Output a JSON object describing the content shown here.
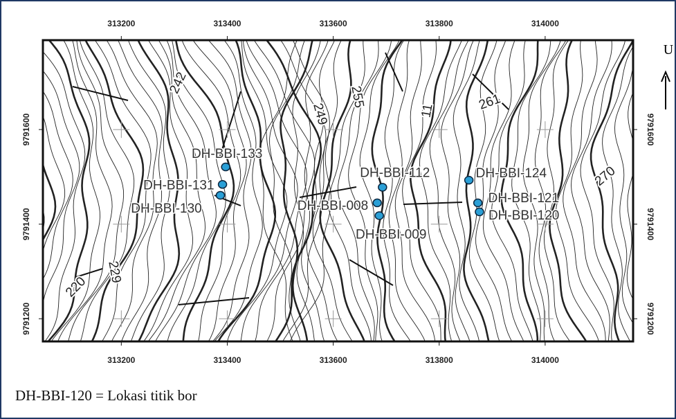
{
  "map": {
    "xticks": [
      313200,
      313400,
      313600,
      313800,
      314000
    ],
    "yticks": [
      9791200,
      9791400,
      9791600
    ],
    "xlim": [
      313052,
      314166
    ],
    "ylim": [
      9791152,
      9791789
    ],
    "north_label": "U",
    "contour_labels": [
      "242",
      "249",
      "255",
      "11",
      "261",
      "270",
      "229",
      "220"
    ],
    "point_color": "#2a9fd6",
    "drill_holes": [
      {
        "name": "DH-BBI-133",
        "easting": 313397,
        "northing": 9791521
      },
      {
        "name": "DH-BBI-131",
        "easting": 313391,
        "northing": 9791484
      },
      {
        "name": "DH-BBI-130",
        "easting": 313387,
        "northing": 9791461
      },
      {
        "name": "DH-BBI-112",
        "easting": 313693,
        "northing": 9791478
      },
      {
        "name": "DH-BBI-008",
        "easting": 313683,
        "northing": 9791445
      },
      {
        "name": "DH-BBI-009",
        "easting": 313687,
        "northing": 9791418
      },
      {
        "name": "DH-BBI-124",
        "easting": 313856,
        "northing": 9791493
      },
      {
        "name": "DH-BBI-121",
        "easting": 313873,
        "northing": 9791445
      },
      {
        "name": "DH-BBI-120",
        "easting": 313876,
        "northing": 9791426
      }
    ],
    "legend": "DH-BBI-120 = Lokasi titik bor"
  }
}
